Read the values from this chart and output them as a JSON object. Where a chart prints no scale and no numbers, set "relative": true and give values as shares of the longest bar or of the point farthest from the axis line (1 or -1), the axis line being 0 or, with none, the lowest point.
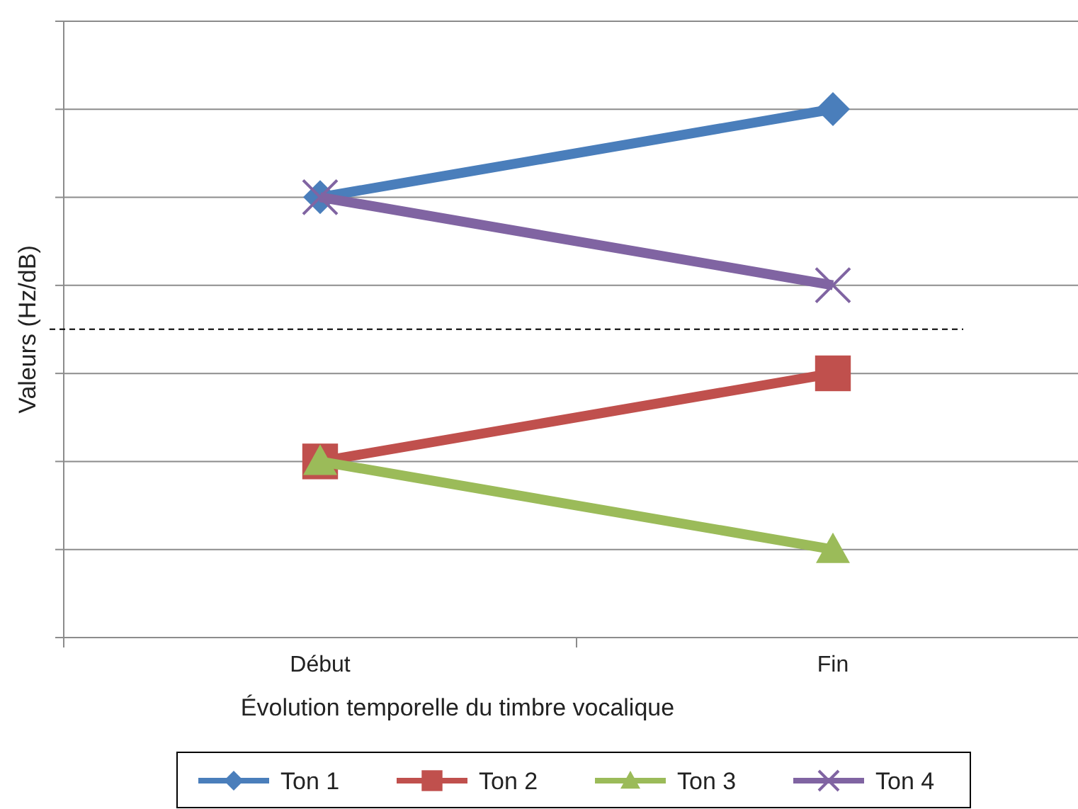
{
  "chart_data": {
    "type": "line",
    "relative": true,
    "xlabel": "Évolution temporelle du timbre vocalique",
    "ylabel": "Valeurs (Hz/dB)",
    "categories": [
      "Début",
      "Fin"
    ],
    "grid": "y",
    "legend": "bottom",
    "line_style": "solid",
    "ref_lines": [
      {
        "axis": "y",
        "value": 0.5833,
        "line_style": "dashed",
        "color": "#000000"
      }
    ],
    "series": [
      {
        "name": "Ton 1",
        "color": "#4a7ebb",
        "marker": "diamond",
        "values": [
          0.8333,
          1
        ]
      },
      {
        "name": "Ton 2",
        "color": "#c0504d",
        "marker": "square",
        "values": [
          0.3333,
          0.5
        ]
      },
      {
        "name": "Ton 3",
        "color": "#9bbb59",
        "marker": "triangle",
        "values": [
          0.3333,
          0.1667
        ]
      },
      {
        "name": "Ton 4",
        "color": "#8064a2",
        "marker": "cross",
        "values": [
          0.8333,
          0.6667
        ]
      }
    ]
  }
}
